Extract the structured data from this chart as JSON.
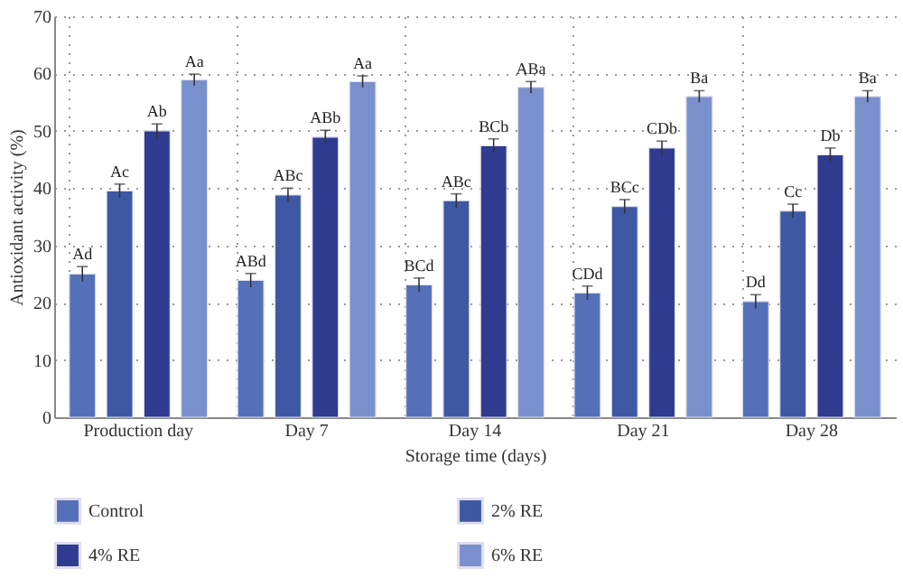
{
  "chart_data": {
    "type": "bar",
    "xlabel": "Storage time (days)",
    "ylabel": "Antioxidant activity (%)",
    "categories": [
      "Production day",
      "Day 7",
      "Day 14",
      "Day 21",
      "Day 28"
    ],
    "series": [
      {
        "name": "Control",
        "color": "#5470b8",
        "values": [
          25.0,
          23.9,
          23.1,
          21.7,
          20.2
        ],
        "errors": [
          1.3,
          1.2,
          1.2,
          1.2,
          1.2
        ],
        "value_labels": [
          "Ad",
          "ABd",
          "BCd",
          "CDd",
          "Dd"
        ]
      },
      {
        "name": "2% RE",
        "color": "#3f58a3",
        "values": [
          39.5,
          38.8,
          37.8,
          36.8,
          36.0
        ],
        "errors": [
          1.2,
          1.2,
          1.2,
          1.2,
          1.2
        ],
        "value_labels": [
          "Ac",
          "ABc",
          "ABc",
          "BCc",
          "Cc"
        ]
      },
      {
        "name": "4% RE",
        "color": "#2f3b8e",
        "values": [
          50.0,
          48.9,
          47.4,
          47.0,
          45.8
        ],
        "errors": [
          1.2,
          1.2,
          1.2,
          1.2,
          1.2
        ],
        "value_labels": [
          "Ab",
          "ABb",
          "BCb",
          "CDb",
          "Db"
        ]
      },
      {
        "name": "6% RE",
        "color": "#7a90cc",
        "values": [
          58.9,
          58.6,
          57.6,
          56.0,
          56.0
        ],
        "errors": [
          1.0,
          1.0,
          1.0,
          1.0,
          1.0
        ],
        "value_labels": [
          "Aa",
          "Aa",
          "ABa",
          "Ba",
          "Ba"
        ]
      }
    ],
    "ylim": [
      0,
      70
    ],
    "yticks": [
      0,
      10,
      20,
      30,
      40,
      50,
      60,
      70
    ],
    "grid": true,
    "legend": "bottom"
  }
}
